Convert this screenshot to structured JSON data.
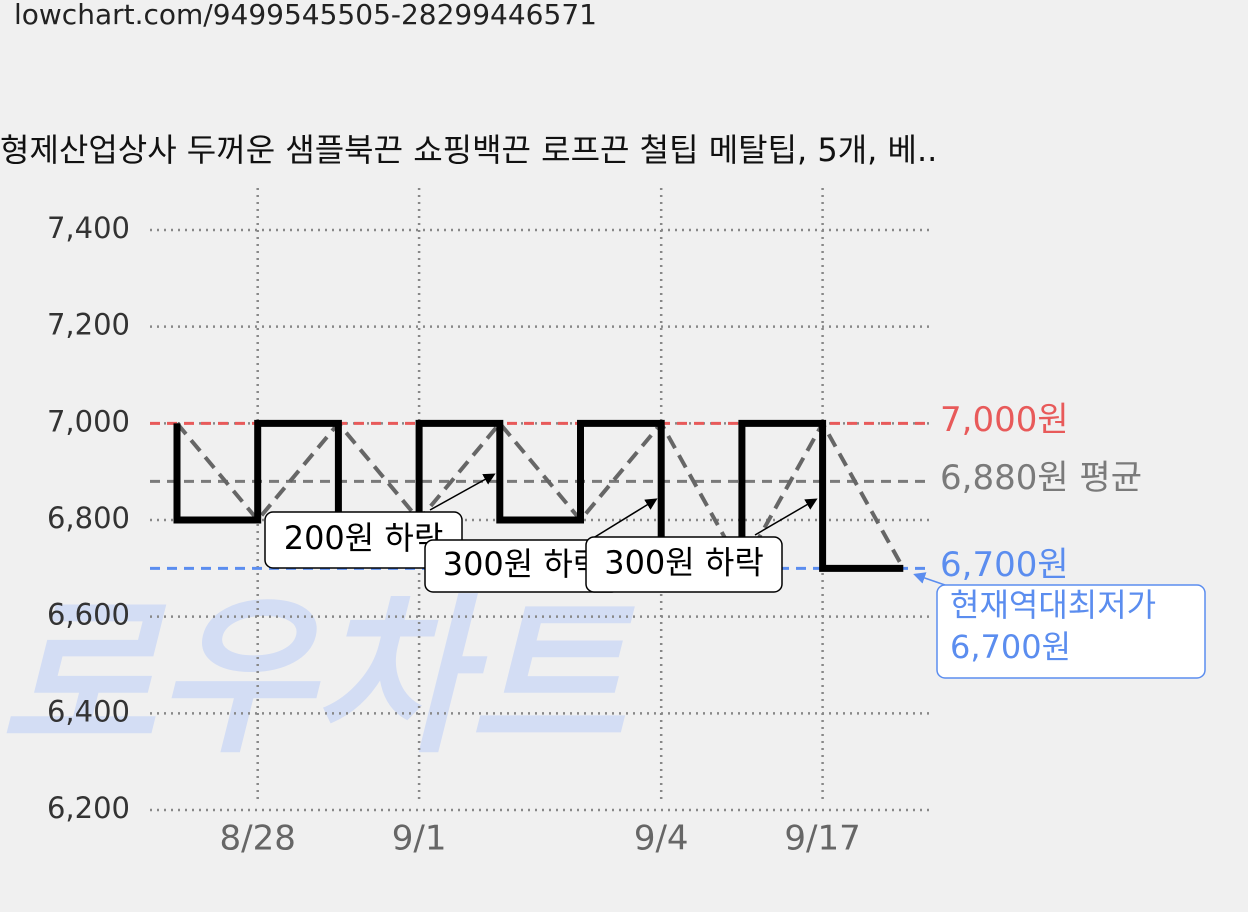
{
  "header": {
    "url": "lowchart.com/9499545505-28299446571"
  },
  "chart_data": {
    "type": "price-step",
    "title": "형제산업상사 두꺼운 샘플북끈 쇼핑백끈 로프끈 철팁 메탈팁, 5개, 베..",
    "watermark": "로우차트",
    "categories": [
      null,
      "8/28",
      null,
      "9/1",
      null,
      null,
      "9/4",
      null,
      "9/17",
      null
    ],
    "series": [
      {
        "color": "#000000",
        "values": [
          7000,
          6800,
          7000,
          6800,
          7000,
          6800,
          7000,
          6700,
          7000,
          6700
        ]
      }
    ],
    "ylim": [
      6200,
      7400
    ],
    "yticks": [
      {
        "value": 6200,
        "label": "6,200"
      },
      {
        "value": 6400,
        "label": "6,400"
      },
      {
        "value": 6600,
        "label": "6,600"
      },
      {
        "value": 6800,
        "label": "6,800"
      },
      {
        "value": 7000,
        "label": "7,000"
      },
      {
        "value": 7200,
        "label": "7,200"
      },
      {
        "value": 7400,
        "label": "7,400"
      }
    ],
    "grid": true,
    "reference_lines": [
      {
        "value": 7000,
        "label": "7,000원",
        "color": "#e85a5a"
      },
      {
        "value": 6880,
        "label": "6,880원 평균",
        "color": "#7a7a7a"
      },
      {
        "value": 6700,
        "label": "6,700원",
        "color": "#5b8def"
      }
    ],
    "annotations": [
      "200원 하락",
      "300원 하락",
      "300원 하락"
    ],
    "callout": [
      "현재역대최저가",
      "6,700원"
    ]
  }
}
